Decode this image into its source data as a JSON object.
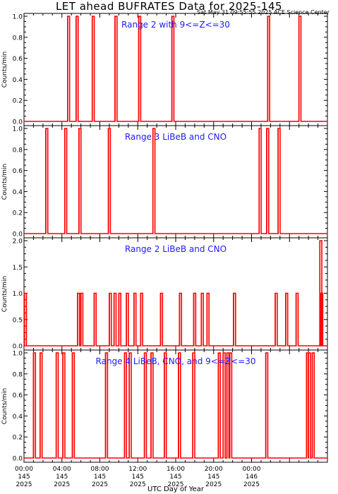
{
  "title": "LET ahead BUFRATES Data for 2025-145",
  "timestamp": "Sat May 31 09:55:55 2025 ACE Science Center",
  "xlabel": "UTC Day of Year",
  "colors": {
    "trace": "#ff0000",
    "panel_title": "#1c1cff",
    "axes": "#000000"
  },
  "chart_data": [
    {
      "type": "line",
      "title": "Range 2 with 9<=Z<=30",
      "ylabel": "Counts/min",
      "ylim": [
        0,
        1.0
      ],
      "yticks": [
        "0.0",
        "0.2",
        "0.4",
        "0.6",
        "0.8",
        "1.0"
      ],
      "baseline": 0,
      "pulse_hours": [
        4.6,
        5.5,
        7.2,
        9.6,
        12.1,
        15.6,
        25.7,
        29.0
      ],
      "pulse_values": [
        1,
        1,
        1,
        1,
        1,
        1,
        1,
        1
      ]
    },
    {
      "type": "line",
      "title": "Range 3 LiBeB and CNO",
      "ylabel": "Counts/min",
      "ylim": [
        0,
        1.0
      ],
      "yticks": [
        "0.0",
        "0.2",
        "0.4",
        "0.6",
        "0.8",
        "1.0"
      ],
      "baseline": 0,
      "pulse_hours": [
        2.3,
        4.3,
        5.8,
        8.9,
        13.6,
        24.8,
        25.6,
        26.8
      ],
      "pulse_values": [
        1,
        1,
        1,
        1,
        1,
        1,
        1,
        1
      ]
    },
    {
      "type": "line",
      "title": "Range 2 LiBeB and CNO",
      "ylabel": "Counts/min",
      "ylim": [
        0,
        2.0
      ],
      "yticks": [
        "0.0",
        "0.5",
        "1.0",
        "1.5",
        "2.0"
      ],
      "baseline": 0,
      "pulse_hours": [
        0.05,
        5.65,
        6.0,
        7.4,
        9.0,
        9.5,
        10.0,
        10.8,
        11.6,
        12.3,
        14.4,
        16.4,
        17.9,
        18.7,
        19.3,
        22.1,
        26.5,
        27.6,
        28.7,
        31.2,
        31.3
      ],
      "pulse_values": [
        1,
        1,
        1,
        1,
        1,
        1,
        1,
        1,
        1,
        1,
        1,
        1,
        1,
        1,
        1,
        1,
        1,
        1,
        1,
        2,
        1
      ]
    },
    {
      "type": "line",
      "title": "Range 4 LiBeB, CNO, and 9<=Z<=30",
      "ylabel": "Counts/min",
      "ylim": [
        0,
        1.0
      ],
      "yticks": [
        "0.0",
        "0.2",
        "0.4",
        "0.6",
        "0.8",
        "1.0"
      ],
      "baseline": 0,
      "pulse_hours": [
        1.0,
        1.7,
        3.4,
        4.1,
        5.1,
        8.6,
        10.6,
        11.1,
        12.7,
        13.4,
        14.8,
        16.3,
        17.8,
        20.5,
        21.0,
        21.4,
        21.7,
        25.5,
        29.8,
        30.0,
        30.4
      ],
      "pulse_values": [
        1,
        1,
        1,
        1,
        1,
        1,
        1,
        1,
        1,
        1,
        1,
        1,
        1,
        1,
        1,
        1,
        1,
        1,
        1,
        1,
        1
      ],
      "x_tick_labels": [
        [
          "00:00",
          "145",
          "2025"
        ],
        [
          "04:00",
          "145",
          "2025"
        ],
        [
          "08:00",
          "145",
          "2025"
        ],
        [
          "12:00",
          "145",
          "2025"
        ],
        [
          "16:00",
          "145",
          "2025"
        ],
        [
          "20:00",
          "145",
          "2025"
        ],
        [
          "00:00",
          "146",
          "2025"
        ]
      ]
    }
  ]
}
